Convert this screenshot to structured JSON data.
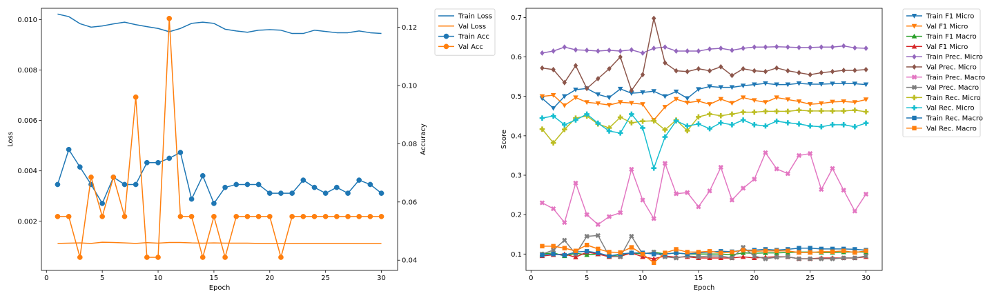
{
  "chart_data": [
    {
      "type": "line",
      "xlabel": "Epoch",
      "ylabel": "Loss",
      "ylabel_right": "Accuracy",
      "xlim": [
        -0.45,
        31.45
      ],
      "ylim": [
        5e-05,
        0.01045
      ],
      "ylim_right": [
        0.0365,
        0.1265
      ],
      "xticks": [
        0,
        5,
        10,
        15,
        20,
        25,
        30
      ],
      "yticks": [
        "0.002",
        "0.004",
        "0.006",
        "0.008",
        "0.010"
      ],
      "yticks_right": [
        "0.04",
        "0.06",
        "0.08",
        "0.10",
        "0.12"
      ],
      "x": [
        1,
        2,
        3,
        4,
        5,
        6,
        7,
        8,
        9,
        10,
        11,
        12,
        13,
        14,
        15,
        16,
        17,
        18,
        19,
        20,
        21,
        22,
        23,
        24,
        25,
        26,
        27,
        28,
        29,
        30
      ],
      "series": [
        {
          "name": "Train Loss",
          "axis": "left",
          "color": "#1f77b4",
          "marker": "none",
          "values": [
            0.01022,
            0.01012,
            0.00984,
            0.0097,
            0.00975,
            0.00983,
            0.0099,
            0.0098,
            0.00972,
            0.00965,
            0.00952,
            0.00965,
            0.00985,
            0.0099,
            0.00985,
            0.00962,
            0.00955,
            0.0095,
            0.00958,
            0.0096,
            0.00958,
            0.00945,
            0.00945,
            0.00958,
            0.00953,
            0.00948,
            0.00948,
            0.00955,
            0.00948,
            0.00945
          ]
        },
        {
          "name": "Val Loss",
          "axis": "left",
          "color": "#ff7f0e",
          "marker": "none",
          "values": [
            0.00112,
            0.00113,
            0.00114,
            0.00112,
            0.00117,
            0.00116,
            0.00114,
            0.00112,
            0.00115,
            0.00113,
            0.00116,
            0.00116,
            0.00114,
            0.00113,
            0.00114,
            0.00113,
            0.00113,
            0.00113,
            0.00112,
            0.00111,
            0.00111,
            0.00111,
            0.00112,
            0.00112,
            0.00112,
            0.00112,
            0.00112,
            0.00111,
            0.00111,
            0.00111
          ]
        },
        {
          "name": "Train Acc",
          "axis": "right",
          "color": "#1f77b4",
          "marker": "circle",
          "values": [
            0.066,
            0.078,
            0.072,
            0.066,
            0.0595,
            0.0685,
            0.066,
            0.066,
            0.0735,
            0.0735,
            0.075,
            0.077,
            0.061,
            0.069,
            0.0595,
            0.065,
            0.066,
            0.066,
            0.066,
            0.063,
            0.063,
            0.063,
            0.0675,
            0.065,
            0.063,
            0.065,
            0.063,
            0.0675,
            0.066,
            0.063
          ]
        },
        {
          "name": "Val Acc",
          "axis": "right",
          "color": "#ff7f0e",
          "marker": "circle",
          "values": [
            0.055,
            0.055,
            0.041,
            0.0685,
            0.055,
            0.0685,
            0.055,
            0.096,
            0.041,
            0.041,
            0.123,
            0.055,
            0.055,
            0.041,
            0.055,
            0.041,
            0.055,
            0.055,
            0.055,
            0.055,
            0.041,
            0.055,
            0.055,
            0.055,
            0.055,
            0.055,
            0.055,
            0.055,
            0.055,
            0.055
          ]
        }
      ],
      "legend": "outside-top-right",
      "grid": false
    },
    {
      "type": "line",
      "xlabel": "Epoch",
      "ylabel": "Score",
      "xlim": [
        -0.45,
        31.45
      ],
      "ylim": [
        0.0585,
        0.7235
      ],
      "xticks": [
        0,
        5,
        10,
        15,
        20,
        25,
        30
      ],
      "yticks": [
        "0.1",
        "0.2",
        "0.3",
        "0.4",
        "0.5",
        "0.6",
        "0.7"
      ],
      "x": [
        1,
        2,
        3,
        4,
        5,
        6,
        7,
        8,
        9,
        10,
        11,
        12,
        13,
        14,
        15,
        16,
        17,
        18,
        19,
        20,
        21,
        22,
        23,
        24,
        25,
        26,
        27,
        28,
        29,
        30
      ],
      "series": [
        {
          "name": "Train F1 Micro",
          "color": "#1f77b4",
          "marker": "triangle-down",
          "values": [
            0.495,
            0.47,
            0.5,
            0.517,
            0.52,
            0.505,
            0.497,
            0.519,
            0.508,
            0.51,
            0.513,
            0.5,
            0.512,
            0.495,
            0.518,
            0.525,
            0.523,
            0.523,
            0.527,
            0.53,
            0.533,
            0.53,
            0.53,
            0.533,
            0.531,
            0.531,
            0.532,
            0.533,
            0.532,
            0.53
          ]
        },
        {
          "name": "Val F1 Micro",
          "color": "#ff7f0e",
          "marker": "triangle-down",
          "values": [
            0.5,
            0.503,
            0.477,
            0.497,
            0.485,
            0.482,
            0.478,
            0.485,
            0.483,
            0.48,
            0.44,
            0.473,
            0.493,
            0.484,
            0.488,
            0.48,
            0.493,
            0.483,
            0.497,
            0.49,
            0.485,
            0.497,
            0.492,
            0.487,
            0.48,
            0.482,
            0.486,
            0.487,
            0.485,
            0.492
          ]
        },
        {
          "name": "Train F1 Macro",
          "color": "#2ca02c",
          "marker": "triangle-up",
          "values": [
            0.1,
            0.103,
            0.095,
            0.102,
            0.098,
            0.1,
            0.095,
            0.098,
            0.103,
            0.1,
            0.105,
            0.1,
            0.103,
            0.1,
            0.1,
            0.1,
            0.1,
            0.098,
            0.103,
            0.102,
            0.103,
            0.103,
            0.104,
            0.105,
            0.105,
            0.104,
            0.104,
            0.105,
            0.105,
            0.105
          ]
        },
        {
          "name": "Val F1 Micro",
          "color": "#d62728",
          "marker": "triangle-up",
          "values": [
            0.095,
            0.098,
            0.1,
            0.092,
            0.105,
            0.1,
            0.093,
            0.094,
            0.103,
            0.093,
            0.088,
            0.095,
            0.092,
            0.093,
            0.09,
            0.09,
            0.09,
            0.09,
            0.093,
            0.09,
            0.092,
            0.093,
            0.093,
            0.088,
            0.088,
            0.09,
            0.09,
            0.09,
            0.09,
            0.093
          ]
        },
        {
          "name": "Train Prec. Micro",
          "color": "#9467bd",
          "marker": "diamond",
          "values": [
            0.61,
            0.615,
            0.625,
            0.618,
            0.617,
            0.615,
            0.617,
            0.615,
            0.618,
            0.61,
            0.622,
            0.625,
            0.615,
            0.615,
            0.615,
            0.62,
            0.622,
            0.617,
            0.622,
            0.625,
            0.625,
            0.626,
            0.625,
            0.624,
            0.624,
            0.625,
            0.625,
            0.628,
            0.623,
            0.622
          ]
        },
        {
          "name": "Val Prec. Micro",
          "color": "#8c564b",
          "marker": "diamond",
          "values": [
            0.572,
            0.568,
            0.535,
            0.578,
            0.52,
            0.545,
            0.57,
            0.6,
            0.515,
            0.555,
            0.698,
            0.585,
            0.565,
            0.563,
            0.57,
            0.565,
            0.575,
            0.553,
            0.57,
            0.565,
            0.563,
            0.572,
            0.565,
            0.56,
            0.555,
            0.56,
            0.563,
            0.566,
            0.566,
            0.568
          ]
        },
        {
          "name": "Train Prec. Macro",
          "color": "#e377c2",
          "marker": "x-filled",
          "values": [
            0.23,
            0.215,
            0.18,
            0.28,
            0.2,
            0.175,
            0.195,
            0.205,
            0.315,
            0.237,
            0.19,
            0.33,
            0.253,
            0.256,
            0.22,
            0.26,
            0.32,
            0.237,
            0.267,
            0.29,
            0.357,
            0.316,
            0.304,
            0.35,
            0.355,
            0.264,
            0.317,
            0.262,
            0.209,
            0.252
          ]
        },
        {
          "name": "Val Prec. Macro",
          "color": "#7f7f7f",
          "marker": "x-filled",
          "values": [
            0.1,
            0.11,
            0.135,
            0.1,
            0.145,
            0.147,
            0.095,
            0.093,
            0.145,
            0.1,
            0.105,
            0.093,
            0.09,
            0.095,
            0.093,
            0.095,
            0.095,
            0.09,
            0.117,
            0.095,
            0.088,
            0.092,
            0.093,
            0.088,
            0.088,
            0.088,
            0.088,
            0.09,
            0.09,
            0.095
          ]
        },
        {
          "name": "Train Rec. Micro",
          "color": "#bcbd22",
          "marker": "plus-filled",
          "values": [
            0.417,
            0.382,
            0.416,
            0.445,
            0.45,
            0.43,
            0.42,
            0.447,
            0.433,
            0.437,
            0.438,
            0.415,
            0.44,
            0.413,
            0.448,
            0.455,
            0.451,
            0.455,
            0.46,
            0.46,
            0.462,
            0.462,
            0.462,
            0.465,
            0.463,
            0.463,
            0.463,
            0.463,
            0.465,
            0.461
          ]
        },
        {
          "name": "Val Rec. Micro",
          "color": "#17becf",
          "marker": "plus-filled",
          "values": [
            0.445,
            0.45,
            0.428,
            0.44,
            0.455,
            0.432,
            0.412,
            0.407,
            0.455,
            0.42,
            0.318,
            0.397,
            0.438,
            0.425,
            0.43,
            0.418,
            0.433,
            0.428,
            0.44,
            0.428,
            0.425,
            0.437,
            0.433,
            0.43,
            0.425,
            0.423,
            0.428,
            0.428,
            0.423,
            0.432
          ]
        },
        {
          "name": "Train Rec. Macro",
          "color": "#1f77b4",
          "marker": "square",
          "values": [
            0.097,
            0.1,
            0.097,
            0.105,
            0.107,
            0.103,
            0.095,
            0.1,
            0.103,
            0.103,
            0.1,
            0.1,
            0.103,
            0.1,
            0.103,
            0.105,
            0.107,
            0.106,
            0.11,
            0.11,
            0.112,
            0.11,
            0.112,
            0.115,
            0.115,
            0.113,
            0.113,
            0.113,
            0.112,
            0.11
          ]
        },
        {
          "name": "Val Rec. Macro",
          "color": "#ff7f0e",
          "marker": "square",
          "values": [
            0.12,
            0.12,
            0.115,
            0.108,
            0.123,
            0.113,
            0.105,
            0.104,
            0.117,
            0.1,
            0.078,
            0.103,
            0.112,
            0.105,
            0.105,
            0.107,
            0.103,
            0.105,
            0.11,
            0.107,
            0.108,
            0.108,
            0.108,
            0.104,
            0.104,
            0.106,
            0.106,
            0.108,
            0.104,
            0.108
          ]
        }
      ],
      "legend": "outside-top-right",
      "grid": false
    }
  ]
}
